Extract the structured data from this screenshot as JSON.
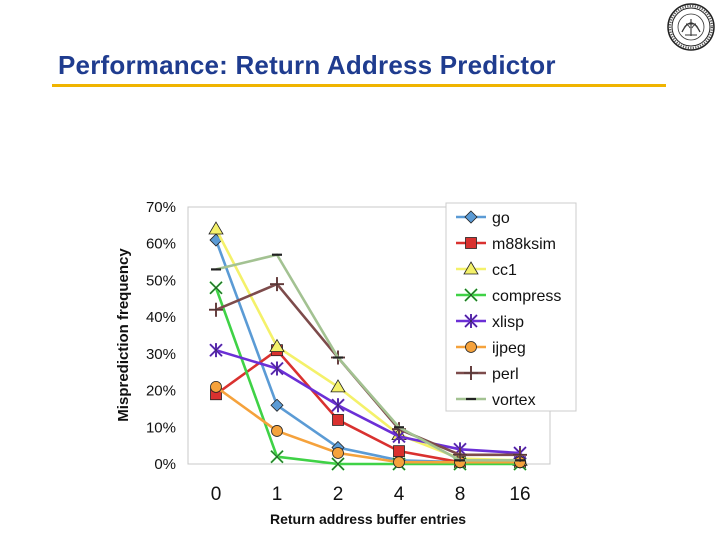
{
  "slide": {
    "title": "Performance: Return Address Predictor"
  },
  "logo": {
    "icon": "university-seal-icon"
  },
  "chart_data": {
    "type": "line",
    "title": "",
    "xlabel": "Return address buffer entries",
    "ylabel": "Misprediction frequency",
    "categories": [
      "0",
      "1",
      "2",
      "4",
      "8",
      "16"
    ],
    "ylim": [
      0,
      70
    ],
    "yticks": [
      "0%",
      "10%",
      "20%",
      "30%",
      "40%",
      "50%",
      "60%",
      "70%"
    ],
    "legend_position": "right",
    "series": [
      {
        "name": "go",
        "color": "#5b9bd5",
        "marker": "diamond",
        "values": [
          61,
          16,
          4.5,
          1,
          0.5,
          0.5
        ]
      },
      {
        "name": "m88ksim",
        "color": "#d9312f",
        "marker": "square",
        "values": [
          19,
          31,
          12,
          3.5,
          0.5,
          0.5
        ]
      },
      {
        "name": "cc1",
        "color": "#f4f16a",
        "marker": "triangle",
        "values": [
          64,
          32,
          21,
          8,
          1.5,
          1
        ]
      },
      {
        "name": "compress",
        "color": "#3fd246",
        "marker": "x",
        "values": [
          48,
          2,
          0,
          0,
          0,
          0
        ]
      },
      {
        "name": "xlisp",
        "color": "#6b2fd6",
        "marker": "star",
        "values": [
          31,
          26,
          16,
          7.5,
          4,
          3
        ]
      },
      {
        "name": "ijpeg",
        "color": "#f5a23c",
        "marker": "circle",
        "values": [
          21,
          9,
          3,
          0.5,
          0.5,
          0.5
        ]
      },
      {
        "name": "perl",
        "color": "#7d4b4b",
        "marker": "plus",
        "values": [
          42,
          49,
          29,
          9.5,
          2.5,
          2.5
        ]
      },
      {
        "name": "vortex",
        "color": "#a3c292",
        "marker": "dash",
        "values": [
          53,
          57,
          29,
          10,
          1,
          1
        ]
      }
    ]
  }
}
